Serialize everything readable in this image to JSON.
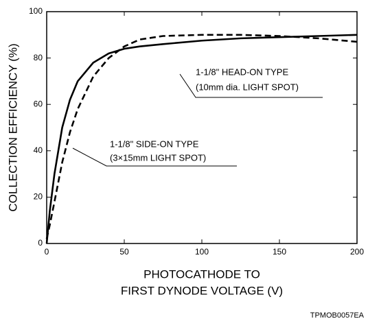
{
  "chart_data": {
    "type": "line",
    "y_label": "COLLECTION EFFICIENCY (%)",
    "x_label": [
      "PHOTOCATHODE TO",
      "FIRST DYNODE VOLTAGE (V)"
    ],
    "footnote": "TPMOB0057EA",
    "x": [
      0,
      2,
      5,
      10,
      15,
      20,
      30,
      40,
      50,
      60,
      75,
      100,
      125,
      150,
      175,
      200
    ],
    "series": [
      {
        "name": "1-1/8\" HEAD-ON TYPE",
        "note": "(10mm dia. LIGHT SPOT)",
        "color": "#000000",
        "dash": false,
        "values": [
          0,
          14,
          30,
          50,
          62,
          70,
          78,
          82,
          84,
          85,
          86,
          87.5,
          88.5,
          89,
          89.5,
          90
        ]
      },
      {
        "name": "1-1/8\" SIDE-ON TYPE",
        "note": "(3×15mm LIGHT SPOT)",
        "color": "#000000",
        "dash": true,
        "values": [
          2,
          8,
          18,
          35,
          48,
          58,
          72,
          80,
          85,
          88,
          89.5,
          90,
          90,
          89.5,
          88.5,
          87
        ]
      }
    ],
    "xlim": [
      0,
      200
    ],
    "xticks": [
      0,
      50,
      100,
      150,
      200
    ],
    "ylim": [
      0,
      100
    ],
    "yticks": [
      0,
      20,
      40,
      60,
      80,
      100
    ],
    "grid": false
  }
}
